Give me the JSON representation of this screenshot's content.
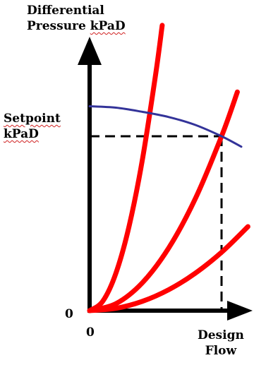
{
  "chart_data": {
    "type": "line",
    "title": "",
    "ylabel": "Differential Pressure kPaD",
    "xlabel": "",
    "x_ticks": {
      "origin": "0",
      "design": "Design Flow"
    },
    "y_ticks": {
      "origin": "0",
      "setpoint": "Setpoint kPaD"
    },
    "xlim": [
      0,
      1.2
    ],
    "ylim": [
      0,
      1.6
    ],
    "setpoint": 1.0,
    "design_flow": 1.0,
    "grid": false,
    "legend": "none",
    "series": [
      {
        "color": "#ff0000",
        "kind": "system-curve",
        "x": [
          0,
          0.2,
          0.4,
          0.6,
          0.8,
          1.0,
          1.2
        ],
        "y": [
          0,
          0.0134,
          0.0535,
          0.1204,
          0.214,
          0.3344,
          0.4816
        ]
      },
      {
        "color": "#ff0000",
        "kind": "system-curve",
        "x": [
          0,
          0.2,
          0.4,
          0.6,
          0.8,
          1.0,
          1.12
        ],
        "y": [
          0,
          0.04,
          0.16,
          0.36,
          0.64,
          1.0,
          1.254
        ]
      },
      {
        "color": "#ff0000",
        "kind": "system-curve",
        "x": [
          0,
          0.1,
          0.2,
          0.3,
          0.4,
          0.5,
          0.55
        ],
        "y": [
          0,
          0.0541,
          0.2163,
          0.4868,
          0.8654,
          1.3522,
          1.636
        ]
      },
      {
        "color": "#333399",
        "kind": "pump-curve",
        "x": [
          0,
          0.2,
          0.4,
          0.6,
          0.8,
          1.0,
          1.15
        ],
        "y": [
          1.172,
          1.164,
          1.14,
          1.11,
          1.065,
          1.0,
          0.94
        ]
      }
    ]
  }
}
